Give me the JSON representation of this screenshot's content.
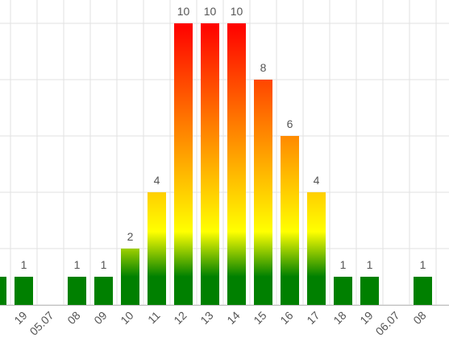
{
  "chart_data": {
    "type": "bar",
    "categories": [
      null,
      "19",
      "05.07",
      "08",
      "09",
      "10",
      "11",
      "12",
      "13",
      "14",
      "15",
      "16",
      "17",
      "18",
      "19",
      "06.07",
      "08"
    ],
    "values": [
      1,
      1,
      0,
      1,
      1,
      2,
      4,
      10,
      10,
      10,
      8,
      6,
      4,
      1,
      1,
      0,
      1
    ],
    "colors": [
      "#008000",
      "#ffff00",
      "#ff0000"
    ],
    "ylim": [
      0,
      10
    ],
    "yticks": [
      0,
      2,
      4,
      6,
      8,
      10
    ],
    "grid": true
  }
}
